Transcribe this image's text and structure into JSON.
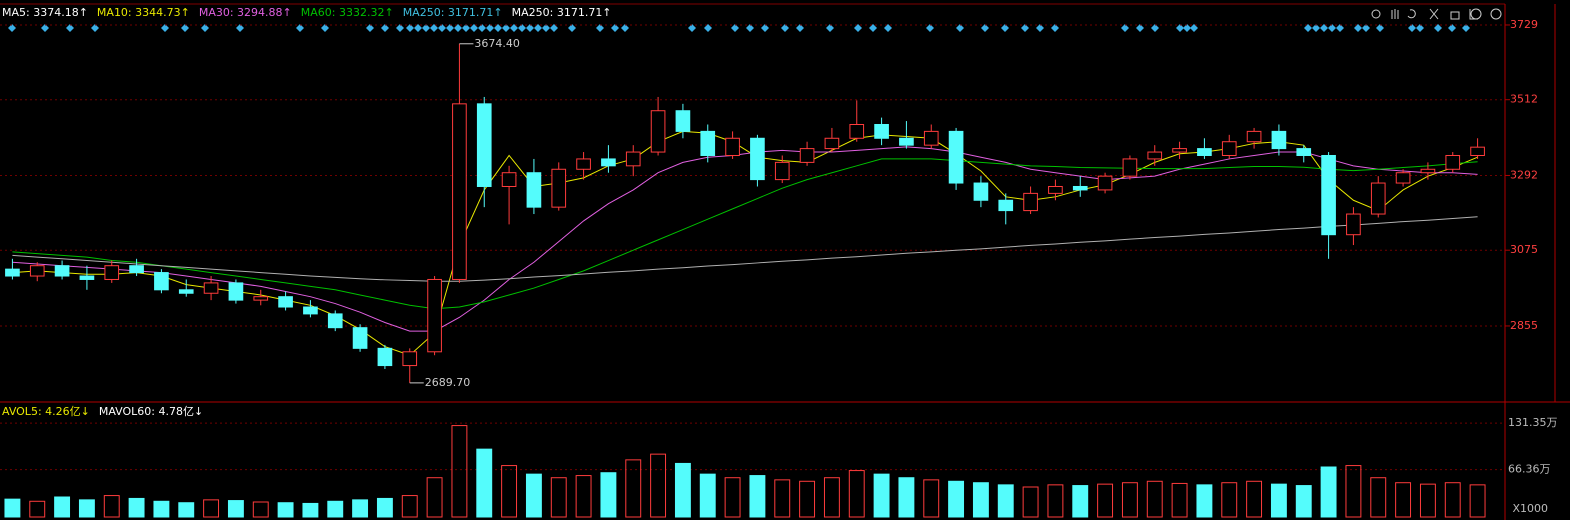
{
  "chart_data": {
    "type": "candlestick",
    "indicators": [
      {
        "label": "MA5: 3374.18↑",
        "color": "#ffffff"
      },
      {
        "label": "MA10: 3344.73↑",
        "color": "#e8e800"
      },
      {
        "label": "MA30: 3294.88↑",
        "color": "#e060e0"
      },
      {
        "label": "MA60: 3332.32↑",
        "color": "#00c000"
      },
      {
        "label": "MA250: 3171.71↑",
        "color": "#40c0e0"
      },
      {
        "label": "MA250: 3171.71↑",
        "color": "#ffffff"
      }
    ],
    "volume_indicators": [
      {
        "label": "AVOL5: 4.26亿↓",
        "color": "#e8e800"
      },
      {
        "label": "MAVOL60: 4.78亿↓",
        "color": "#ffffff"
      }
    ],
    "open": [
      3020,
      3000,
      3030,
      3000,
      2990,
      3030,
      3010,
      2960,
      2950,
      2980,
      2930,
      2940,
      2910,
      2890,
      2850,
      2790,
      2740,
      2780,
      2990,
      3500,
      3260,
      3300,
      3200,
      3310,
      3340,
      3320,
      3360,
      3480,
      3420,
      3350,
      3400,
      3280,
      3330,
      3370,
      3400,
      3440,
      3400,
      3380,
      3420,
      3270,
      3220,
      3190,
      3240,
      3260,
      3250,
      3290,
      3340,
      3360,
      3370,
      3350,
      3390,
      3420,
      3370,
      3350,
      3120,
      3180,
      3270,
      3300,
      3310,
      3350
    ],
    "high": [
      3050,
      3040,
      3045,
      3030,
      3045,
      3050,
      3020,
      2990,
      3000,
      2990,
      2960,
      2955,
      2930,
      2900,
      2860,
      2800,
      2790,
      3000,
      3674.4,
      3520,
      3320,
      3340,
      3330,
      3360,
      3380,
      3380,
      3520,
      3500,
      3440,
      3420,
      3410,
      3350,
      3390,
      3430,
      3510,
      3460,
      3450,
      3440,
      3430,
      3290,
      3240,
      3260,
      3280,
      3290,
      3300,
      3350,
      3380,
      3390,
      3400,
      3410,
      3430,
      3440,
      3380,
      3360,
      3200,
      3290,
      3310,
      3330,
      3360,
      3400
    ],
    "low": [
      2990,
      2985,
      2990,
      2960,
      2980,
      3000,
      2950,
      2940,
      2930,
      2920,
      2915,
      2900,
      2880,
      2840,
      2780,
      2730,
      2689.7,
      2770,
      2980,
      3200,
      3150,
      3180,
      3190,
      3280,
      3300,
      3290,
      3350,
      3400,
      3330,
      3340,
      3260,
      3270,
      3320,
      3360,
      3390,
      3380,
      3370,
      3370,
      3250,
      3200,
      3150,
      3180,
      3220,
      3230,
      3240,
      3280,
      3320,
      3340,
      3340,
      3340,
      3370,
      3350,
      3330,
      3050,
      3090,
      3170,
      3260,
      3280,
      3300,
      3340
    ],
    "close": [
      3000,
      3030,
      3000,
      2990,
      3030,
      3010,
      2960,
      2950,
      2980,
      2930,
      2940,
      2910,
      2890,
      2850,
      2790,
      2740,
      2780,
      2990,
      3500,
      3260,
      3300,
      3200,
      3310,
      3340,
      3320,
      3360,
      3480,
      3420,
      3350,
      3400,
      3280,
      3330,
      3370,
      3400,
      3440,
      3400,
      3380,
      3420,
      3270,
      3220,
      3190,
      3240,
      3260,
      3250,
      3290,
      3340,
      3360,
      3370,
      3350,
      3390,
      3420,
      3370,
      3350,
      3120,
      3180,
      3270,
      3300,
      3310,
      3350,
      3374.18
    ],
    "volume": [
      25,
      22,
      28,
      24,
      30,
      26,
      22,
      20,
      24,
      23,
      21,
      20,
      19,
      22,
      24,
      26,
      30,
      55,
      128,
      95,
      72,
      60,
      55,
      58,
      62,
      80,
      88,
      75,
      60,
      55,
      58,
      52,
      50,
      55,
      65,
      60,
      55,
      52,
      50,
      48,
      45,
      42,
      45,
      44,
      46,
      48,
      50,
      47,
      45,
      48,
      50,
      46,
      44,
      70,
      72,
      55,
      48,
      46,
      48,
      45
    ],
    "ma_lines": [
      {
        "color": "#e8e800",
        "values": [
          3010,
          3015,
          3010,
          3005,
          3005,
          3010,
          3000,
          2975,
          2965,
          2955,
          2945,
          2930,
          2915,
          2885,
          2845,
          2795,
          2770,
          2835,
          3090,
          3250,
          3350,
          3260,
          3270,
          3285,
          3320,
          3340,
          3390,
          3420,
          3415,
          3390,
          3345,
          3335,
          3330,
          3365,
          3400,
          3410,
          3405,
          3400,
          3355,
          3305,
          3230,
          3220,
          3230,
          3250,
          3265,
          3295,
          3330,
          3355,
          3360,
          3370,
          3385,
          3390,
          3380,
          3280,
          3220,
          3190,
          3250,
          3290,
          3315,
          3345
        ]
      },
      {
        "color": "#e060e0",
        "values": [
          3040,
          3035,
          3030,
          3025,
          3020,
          3015,
          3010,
          3000,
          2990,
          2980,
          2970,
          2955,
          2940,
          2920,
          2895,
          2865,
          2840,
          2840,
          2880,
          2930,
          2990,
          3040,
          3100,
          3160,
          3210,
          3250,
          3300,
          3330,
          3345,
          3350,
          3360,
          3365,
          3360,
          3360,
          3365,
          3370,
          3375,
          3370,
          3360,
          3345,
          3330,
          3310,
          3300,
          3290,
          3280,
          3285,
          3290,
          3310,
          3325,
          3340,
          3350,
          3360,
          3360,
          3340,
          3320,
          3310,
          3305,
          3300,
          3300,
          3295
        ]
      },
      {
        "color": "#00c000",
        "values": [
          3070,
          3065,
          3060,
          3055,
          3045,
          3040,
          3030,
          3020,
          3010,
          3000,
          2990,
          2980,
          2970,
          2960,
          2945,
          2930,
          2915,
          2905,
          2910,
          2925,
          2945,
          2965,
          2990,
          3015,
          3045,
          3075,
          3105,
          3135,
          3165,
          3195,
          3225,
          3255,
          3280,
          3300,
          3320,
          3340,
          3340,
          3340,
          3335,
          3330,
          3325,
          3320,
          3318,
          3315,
          3314,
          3313,
          3312,
          3312,
          3312,
          3315,
          3318,
          3318,
          3316,
          3310,
          3306,
          3310,
          3315,
          3320,
          3326,
          3332
        ]
      },
      {
        "color": "#b0b0b0",
        "values": [
          3060,
          3055,
          3050,
          3045,
          3040,
          3035,
          3030,
          3025,
          3020,
          3015,
          3010,
          3005,
          3000,
          2996,
          2992,
          2989,
          2987,
          2985,
          2985,
          2988,
          2992,
          2997,
          3001,
          3006,
          3011,
          3015,
          3020,
          3024,
          3029,
          3033,
          3038,
          3043,
          3047,
          3052,
          3056,
          3061,
          3066,
          3070,
          3075,
          3079,
          3084,
          3089,
          3093,
          3098,
          3102,
          3107,
          3112,
          3116,
          3121,
          3125,
          3130,
          3135,
          3139,
          3144,
          3148,
          3153,
          3158,
          3162,
          3167,
          3172
        ]
      }
    ],
    "annotations": [
      {
        "x": 18,
        "value": 3674.4,
        "label": "3674.40"
      },
      {
        "x": 16,
        "value": 2689.7,
        "label": "2689.70"
      }
    ],
    "ylim": [
      2640,
      3787
    ],
    "yticks": [
      3729,
      3512,
      3292,
      3075,
      2855
    ],
    "vol_ylim": [
      0,
      156.8
    ],
    "vol_yticks": [
      {
        "value": 131.35,
        "label": "131.35万"
      },
      {
        "value": 66.36,
        "label": "66.36万"
      }
    ],
    "vol_unit": "X1000",
    "up_color": "#ff3c3c",
    "down_color": "#54fcfc",
    "grid": true
  }
}
